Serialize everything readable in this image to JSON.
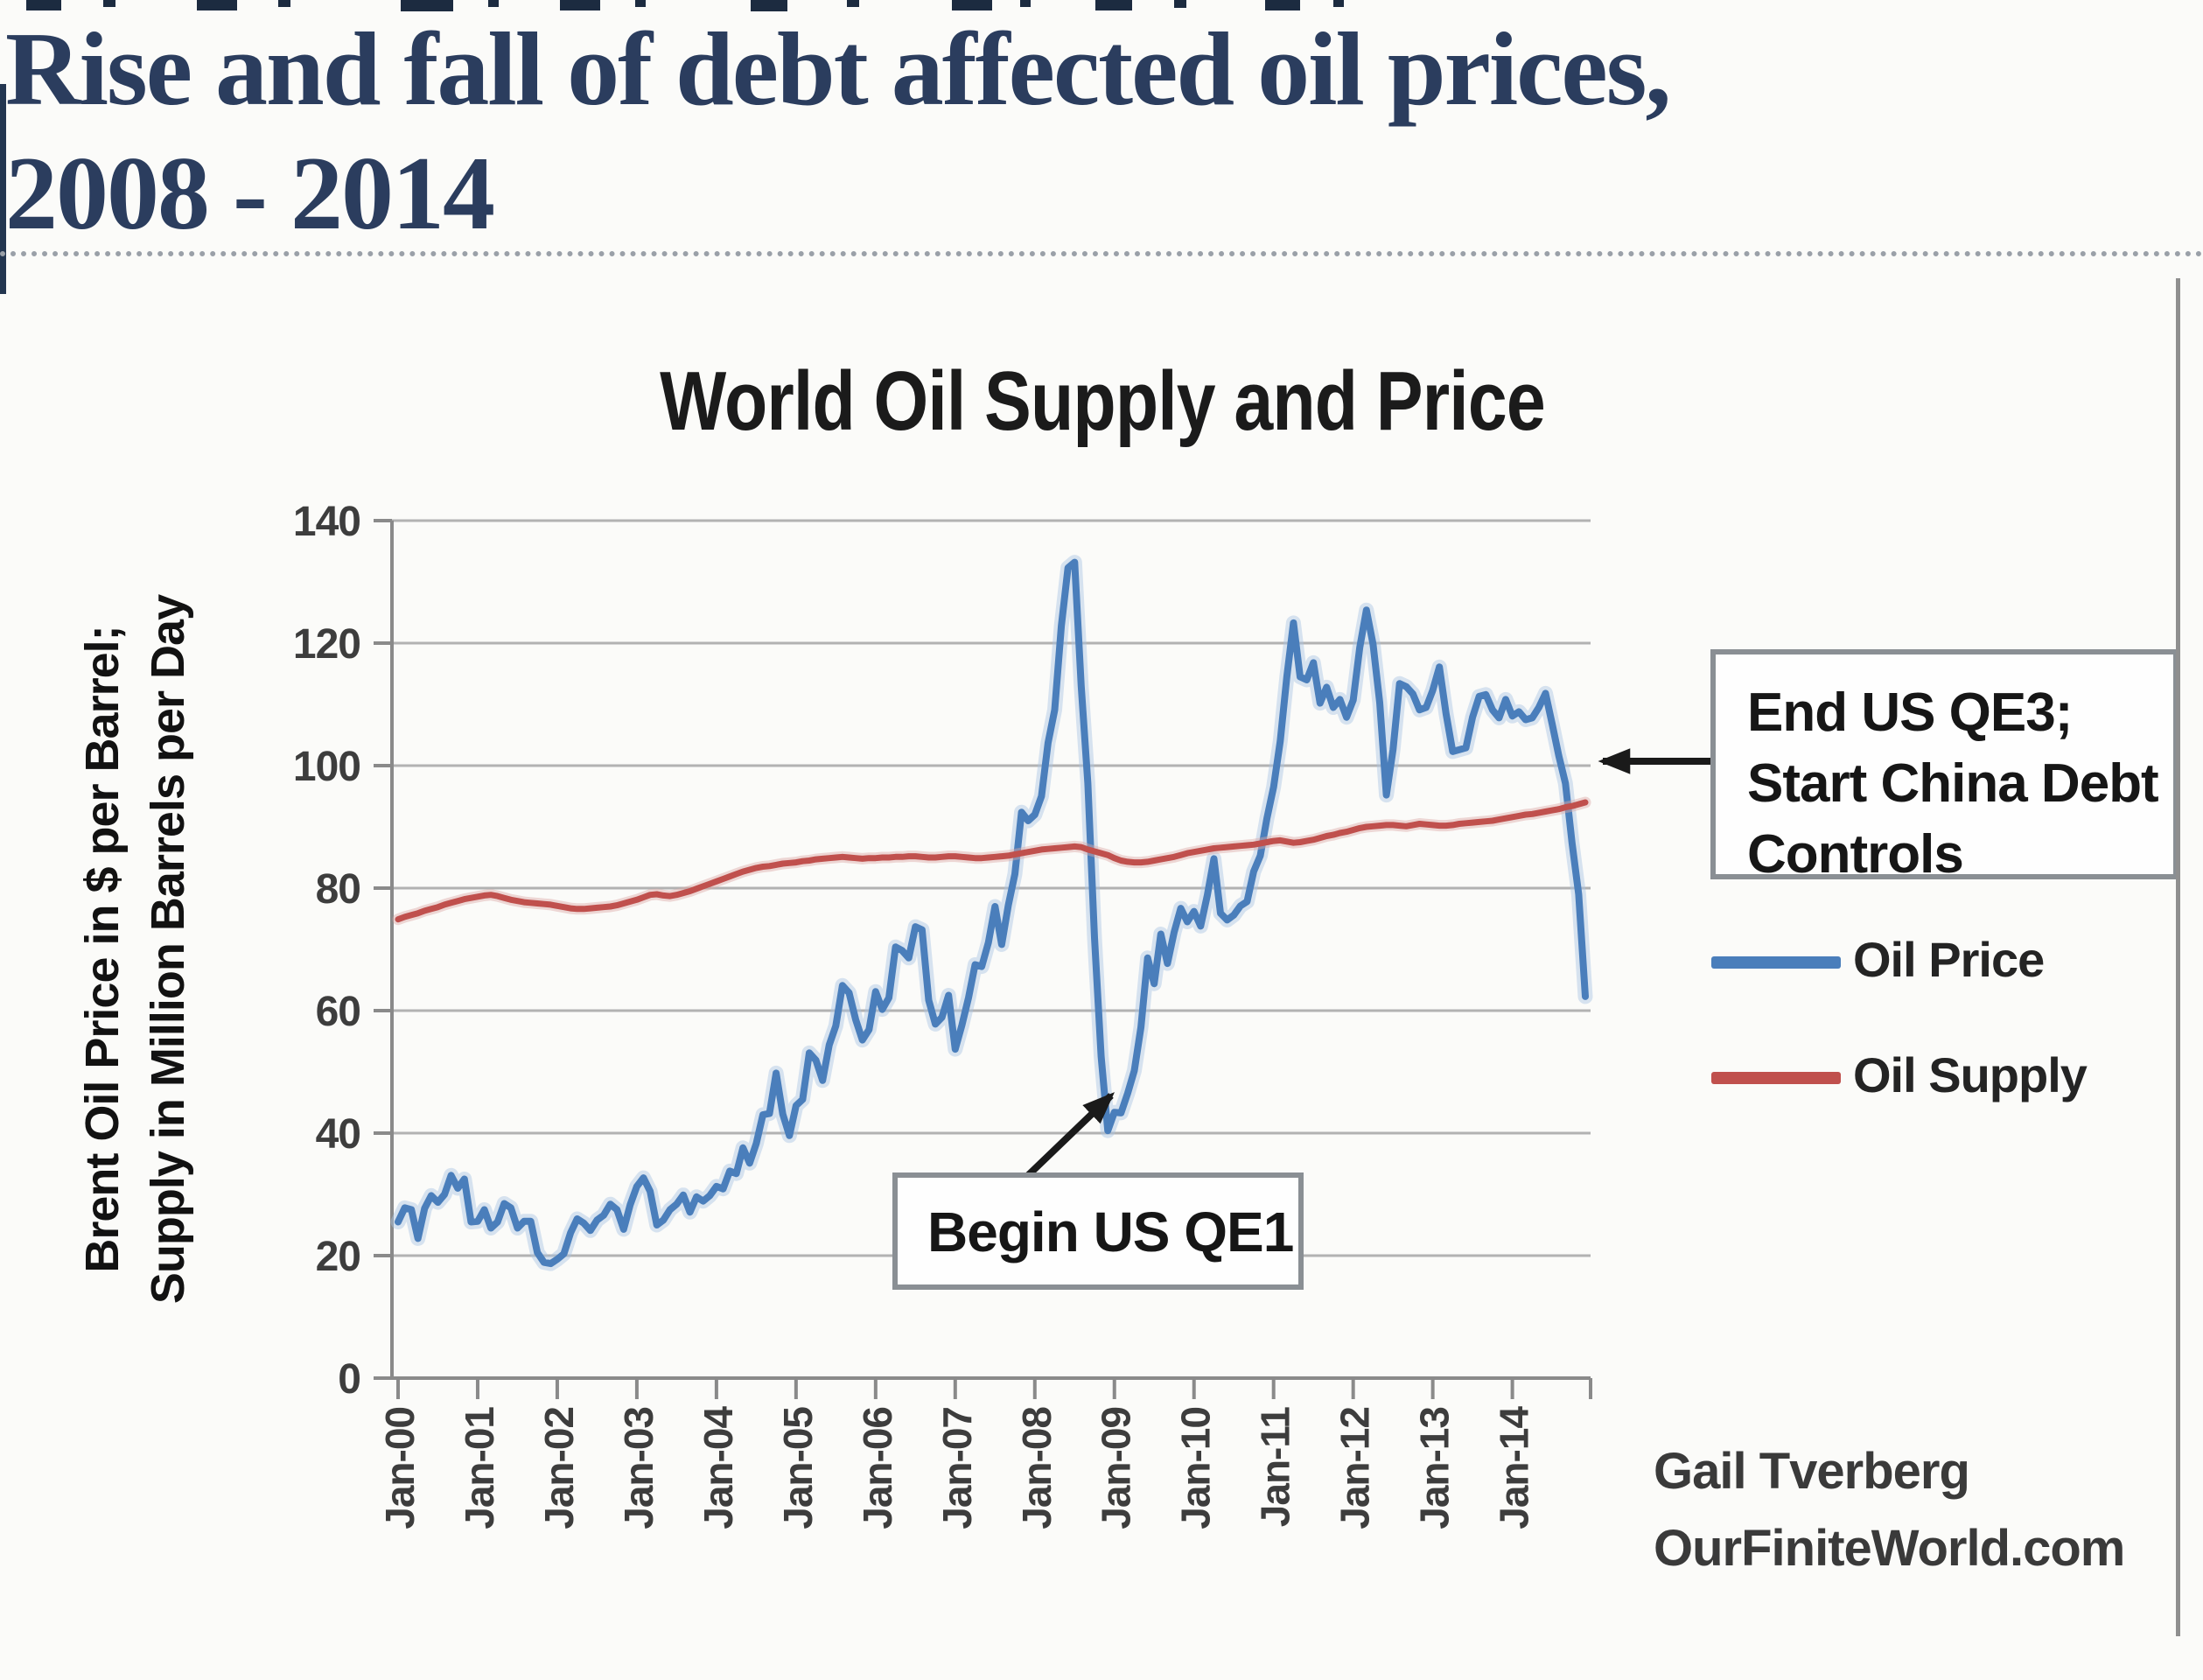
{
  "slide": {
    "title_line1": "Rise and fall of debt affected oil prices,",
    "title_line2": "2008 - 2014",
    "title_color": "#2b3d5e"
  },
  "annotations": {
    "qe3_line1": "End US QE3;",
    "qe3_line2": "Start China Debt",
    "qe3_line3": "Controls",
    "qe1_text": "Begin US QE1"
  },
  "credit": {
    "line1": "Gail Tverberg",
    "line2": "OurFiniteWorld.com"
  },
  "chart_data": {
    "type": "line",
    "title": "World Oil Supply and Price",
    "ylabel_line1": "Brent Oil Price in $ per Barrel;",
    "ylabel_line2": "Supply in Million Barrels per Day",
    "xlabel": "",
    "ylim": [
      0,
      140
    ],
    "ytick_step": 20,
    "yticks": [
      0,
      20,
      40,
      60,
      80,
      100,
      120,
      140
    ],
    "x_tick_labels": [
      "Jan-00",
      "Jan-01",
      "Jan-02",
      "Jan-03",
      "Jan-04",
      "Jan-05",
      "Jan-06",
      "Jan-07",
      "Jan-08",
      "Jan-09",
      "Jan-10",
      "Jan-11",
      "Jan-12",
      "Jan-13",
      "Jan-14"
    ],
    "x_unit": "months, Jan-2000 through Dec-2014",
    "grid": "horizontal",
    "grid_color": "#b2b2b2",
    "axis_color": "#8a8a8a",
    "legend_position": "right",
    "series": [
      {
        "name": "Oil Price",
        "color": "#4a7ebb",
        "halo": "#a9c4e3",
        "values": [
          25.5,
          27.8,
          27.5,
          22.8,
          27.7,
          29.8,
          28.7,
          30.0,
          33.1,
          31.0,
          32.5,
          25.5,
          25.6,
          27.5,
          24.5,
          25.5,
          28.5,
          27.8,
          24.5,
          25.6,
          25.6,
          20.5,
          18.9,
          18.7,
          19.4,
          20.3,
          23.7,
          26.0,
          25.3,
          24.1,
          25.8,
          26.6,
          28.4,
          27.5,
          24.3,
          28.3,
          31.3,
          32.7,
          30.5,
          25.0,
          25.8,
          27.5,
          28.4,
          29.9,
          27.1,
          29.6,
          28.9,
          29.8,
          31.3,
          30.9,
          33.8,
          33.4,
          37.6,
          35.1,
          38.3,
          43.0,
          43.2,
          49.8,
          43.1,
          39.6,
          44.5,
          45.5,
          53.1,
          51.9,
          48.6,
          54.4,
          57.5,
          64.1,
          62.9,
          58.5,
          55.2,
          56.9,
          63.1,
          60.2,
          62.1,
          70.4,
          69.8,
          68.6,
          73.7,
          73.2,
          61.7,
          57.8,
          58.9,
          62.5,
          53.7,
          57.6,
          62.1,
          67.5,
          67.2,
          71.1,
          77.0,
          70.8,
          77.2,
          82.3,
          92.4,
          91.0,
          92.0,
          95.0,
          103.7,
          109.1,
          122.8,
          132.3,
          133.2,
          113.0,
          97.1,
          71.9,
          52.5,
          40.4,
          43.4,
          43.3,
          46.5,
          50.2,
          57.3,
          68.6,
          64.4,
          72.5,
          67.7,
          72.8,
          76.7,
          74.5,
          76.2,
          73.8,
          78.8,
          84.8,
          75.9,
          74.8,
          75.6,
          77.1,
          77.8,
          82.7,
          85.3,
          91.4,
          96.5,
          104.0,
          114.6,
          123.3,
          114.5,
          114.0,
          116.8,
          110.2,
          112.8,
          109.5,
          110.8,
          107.9,
          110.7,
          119.3,
          125.4,
          119.8,
          110.3,
          95.2,
          102.6,
          113.4,
          112.9,
          111.7,
          109.1,
          109.5,
          112.3,
          116.1,
          108.5,
          102.3,
          102.6,
          102.9,
          107.9,
          111.3,
          111.6,
          109.1,
          107.8,
          110.8,
          108.1,
          108.8,
          107.5,
          107.8,
          109.5,
          111.8,
          106.8,
          101.6,
          97.1,
          87.4,
          79.0,
          62.3
        ]
      },
      {
        "name": "Oil Supply",
        "color": "#c0504d",
        "halo": "#dba8a6",
        "values": [
          74.9,
          75.3,
          75.6,
          75.9,
          76.3,
          76.6,
          76.9,
          77.3,
          77.6,
          77.9,
          78.2,
          78.4,
          78.6,
          78.8,
          78.9,
          78.7,
          78.4,
          78.1,
          77.9,
          77.7,
          77.6,
          77.5,
          77.4,
          77.3,
          77.1,
          76.9,
          76.7,
          76.6,
          76.6,
          76.7,
          76.8,
          76.9,
          77.0,
          77.2,
          77.5,
          77.8,
          78.1,
          78.5,
          78.9,
          79.0,
          78.8,
          78.7,
          78.9,
          79.2,
          79.5,
          79.9,
          80.3,
          80.7,
          81.1,
          81.5,
          81.9,
          82.3,
          82.7,
          83.0,
          83.3,
          83.5,
          83.6,
          83.8,
          84.0,
          84.1,
          84.2,
          84.4,
          84.5,
          84.7,
          84.8,
          84.9,
          85.0,
          85.1,
          85.0,
          84.9,
          84.8,
          84.9,
          84.9,
          85.0,
          85.0,
          85.1,
          85.1,
          85.2,
          85.2,
          85.1,
          85.0,
          85.0,
          85.1,
          85.2,
          85.2,
          85.1,
          85.0,
          84.9,
          84.9,
          85.0,
          85.1,
          85.2,
          85.3,
          85.5,
          85.7,
          85.9,
          86.1,
          86.3,
          86.4,
          86.5,
          86.6,
          86.7,
          86.8,
          86.7,
          86.3,
          86.0,
          85.7,
          85.4,
          84.9,
          84.5,
          84.3,
          84.2,
          84.2,
          84.3,
          84.5,
          84.7,
          84.9,
          85.1,
          85.4,
          85.7,
          85.9,
          86.1,
          86.3,
          86.5,
          86.6,
          86.7,
          86.8,
          86.9,
          87.0,
          87.1,
          87.3,
          87.5,
          87.7,
          87.8,
          87.6,
          87.4,
          87.5,
          87.7,
          87.9,
          88.2,
          88.5,
          88.7,
          89.0,
          89.2,
          89.5,
          89.8,
          90.0,
          90.1,
          90.2,
          90.3,
          90.3,
          90.2,
          90.1,
          90.3,
          90.5,
          90.4,
          90.3,
          90.2,
          90.2,
          90.3,
          90.5,
          90.6,
          90.7,
          90.8,
          90.9,
          91.0,
          91.2,
          91.4,
          91.6,
          91.8,
          92.0,
          92.1,
          92.3,
          92.5,
          92.7,
          92.9,
          93.2,
          93.4,
          93.7,
          94.0
        ]
      }
    ]
  }
}
